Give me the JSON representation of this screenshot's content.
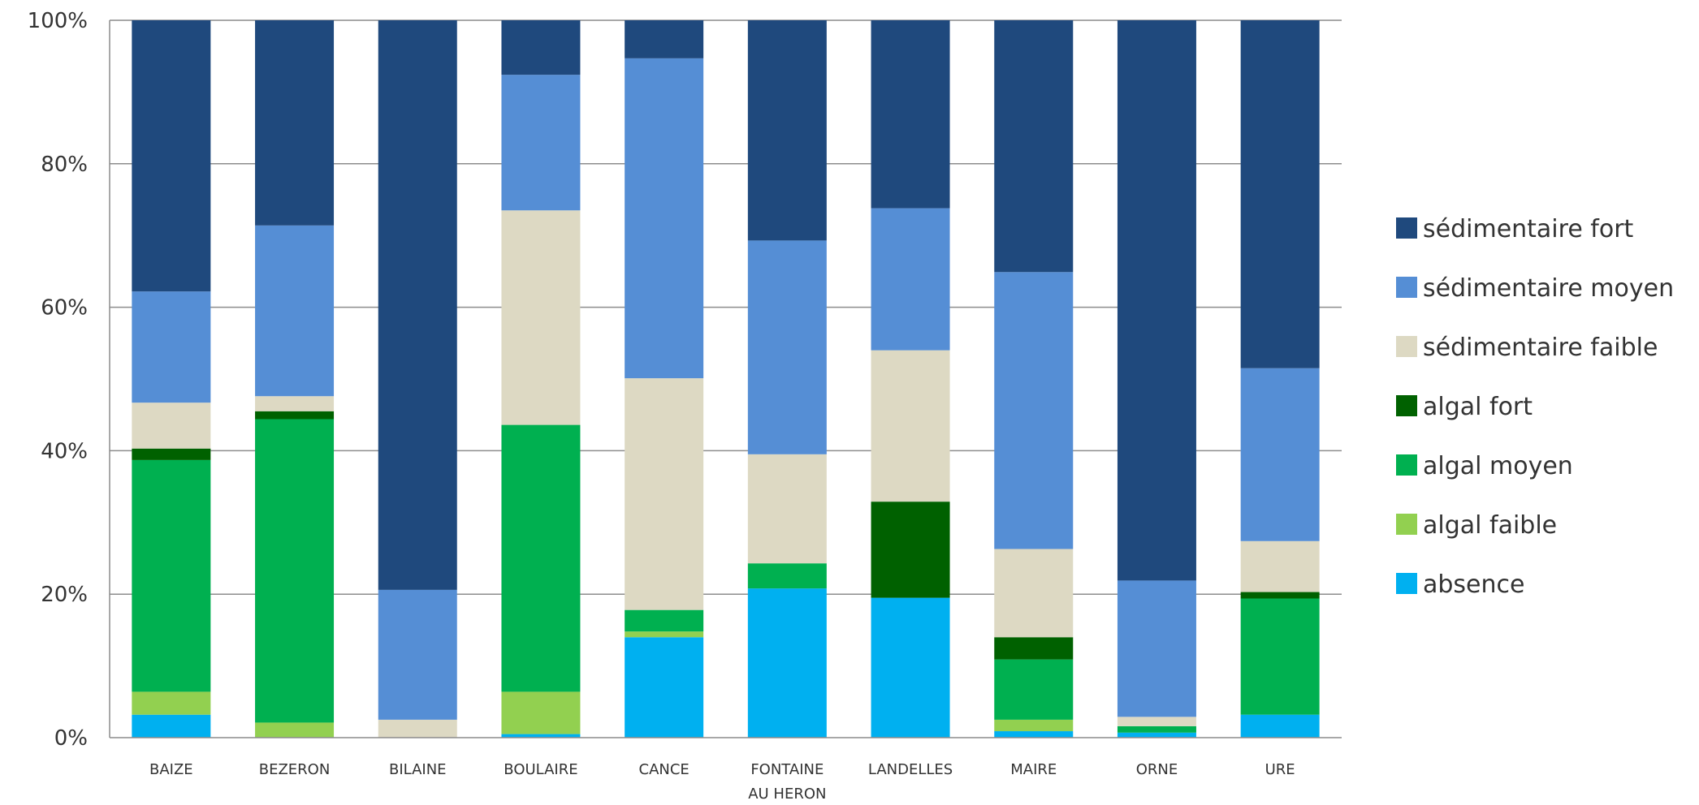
{
  "chart_data": {
    "type": "bar",
    "stacked": true,
    "percent": true,
    "categories": [
      [
        "BAIZE"
      ],
      [
        "BEZERON"
      ],
      [
        "BILAINE"
      ],
      [
        "BOULAIRE"
      ],
      [
        "CANCE"
      ],
      [
        "FONTAINE",
        "AU HERON"
      ],
      [
        "LANDELLES"
      ],
      [
        "MAIRE"
      ],
      [
        "ORNE"
      ],
      [
        "URE"
      ]
    ],
    "ylim": [
      0,
      100
    ],
    "yticks": [
      0,
      20,
      40,
      60,
      80,
      100
    ],
    "ytick_labels": [
      "0%",
      "20%",
      "40%",
      "60%",
      "80%",
      "100%"
    ],
    "grid": true,
    "legend_position": "right",
    "series": [
      {
        "name": "absence",
        "color": "#00b0f0",
        "values": [
          3.2,
          0,
          0,
          0.5,
          14.0,
          20.8,
          19.5,
          0.9,
          0.7,
          3.2
        ]
      },
      {
        "name": "algal faible",
        "color": "#92d050",
        "values": [
          3.2,
          2.1,
          0,
          5.9,
          0.8,
          0,
          0,
          1.6,
          0,
          0
        ]
      },
      {
        "name": "algal moyen",
        "color": "#00b050",
        "values": [
          32.3,
          42.3,
          0,
          37.2,
          3.0,
          3.5,
          0,
          8.4,
          0.9,
          16.2
        ]
      },
      {
        "name": "algal fort",
        "color": "#006100",
        "values": [
          1.6,
          1.1,
          0,
          0,
          0,
          0,
          13.4,
          3.1,
          0,
          0.9
        ]
      },
      {
        "name": "sédimentaire faible",
        "color": "#ddd9c3",
        "values": [
          6.4,
          2.1,
          2.5,
          29.9,
          32.3,
          15.2,
          21.1,
          12.3,
          1.3,
          7.1
        ]
      },
      {
        "name": "sédimentaire moyen",
        "color": "#558ed5",
        "values": [
          15.5,
          23.8,
          18.1,
          18.9,
          44.6,
          29.8,
          19.8,
          38.6,
          19.0,
          24.1
        ]
      },
      {
        "name": "sédimentaire fort",
        "color": "#1f497d",
        "values": [
          37.8,
          28.6,
          79.4,
          7.6,
          5.3,
          30.7,
          26.2,
          35.1,
          78.1,
          48.5
        ]
      }
    ]
  }
}
